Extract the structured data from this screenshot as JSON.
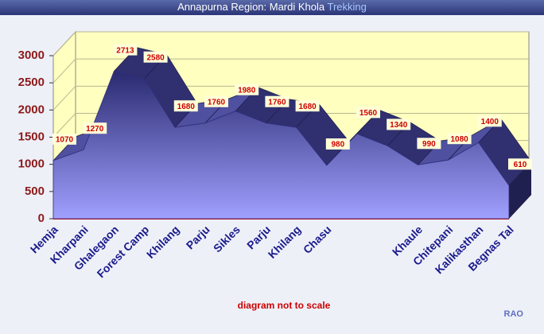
{
  "chart_data": {
    "type": "area3d",
    "title": "Annapurna Region: Mardi Khola",
    "title_highlight": "Trekking",
    "categories": [
      "Hemja",
      "Kharpani",
      "Ghalegaon",
      "Forest Camp",
      "Khilang",
      "Parju",
      "Sikles",
      "Parju",
      "Khilang",
      "Chasu",
      null,
      null,
      "Khaule",
      "Chitepani",
      "Kalikasthan",
      "Begnas Tal"
    ],
    "values": [
      1070,
      1270,
      2713,
      2580,
      1680,
      1760,
      1980,
      1760,
      1680,
      980,
      1560,
      1340,
      990,
      1080,
      1400,
      610
    ],
    "color": "#6a6ae0",
    "ylim": [
      0,
      3000
    ],
    "yticks": [
      0,
      500,
      1000,
      1500,
      2000,
      2500,
      3000
    ],
    "grid": true,
    "note": "diagram not to scale",
    "credit": "RAO"
  }
}
